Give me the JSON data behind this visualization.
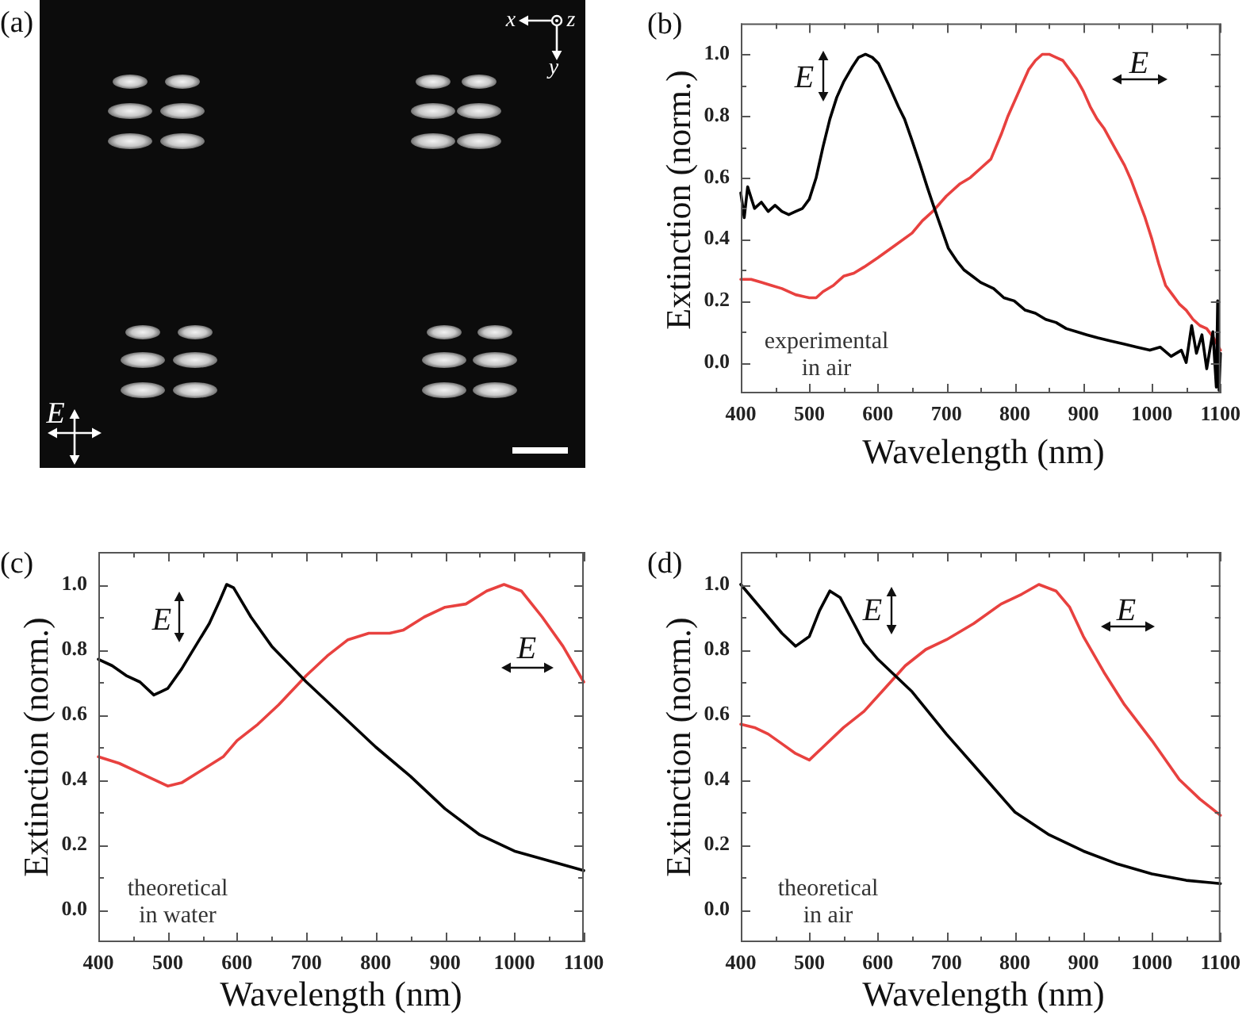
{
  "chart_data": [
    {
      "type": "other",
      "title": "(a)",
      "annotations": [
        "x",
        "z",
        "y",
        "E"
      ]
    },
    {
      "type": "line",
      "title": "(b)",
      "xlabel": "Wavelength (nm)",
      "ylabel": "Extinction (norm.)",
      "xlim": [
        400,
        1100
      ],
      "ylim": [
        -0.1,
        1.1
      ],
      "xticks": [
        400,
        {
          "value": 450,
          "label": null
        },
        500,
        {
          "value": 550,
          "label": null
        },
        600,
        {
          "value": 650,
          "label": null
        },
        700,
        {
          "value": 750,
          "label": null
        },
        800,
        {
          "value": 850,
          "label": null
        },
        900,
        {
          "value": 950,
          "label": null
        },
        1000,
        {
          "value": 1050,
          "label": null
        },
        1100
      ],
      "yticks": [
        {
          "value": 0,
          "label": "0.0"
        },
        {
          "value": 0.1,
          "label": null
        },
        0.2,
        {
          "value": 0.3,
          "label": null
        },
        0.4,
        {
          "value": 0.5,
          "label": null
        },
        0.6,
        {
          "value": 0.7,
          "label": null
        },
        0.8,
        {
          "value": 0.9,
          "label": null
        },
        {
          "value": 1,
          "label": "1.0"
        }
      ],
      "series": [
        {
          "color": "#000000",
          "x": [
            400,
            405,
            410,
            420,
            430,
            440,
            450,
            460,
            470,
            480,
            490,
            500,
            510,
            520,
            530,
            540,
            550,
            563,
            572,
            582,
            592,
            601,
            616,
            630,
            639,
            650,
            662,
            672,
            681,
            692,
            703,
            715,
            726,
            738,
            750,
            769,
            784,
            799,
            815,
            830,
            845,
            860,
            875,
            890,
            905,
            921,
            940,
            959,
            978,
            997,
            1012,
            1028,
            1043,
            1050,
            1058,
            1065,
            1073,
            1080,
            1089,
            1094,
            1096,
            1098,
            1100
          ],
          "values": [
            0.55,
            0.47,
            0.57,
            0.5,
            0.52,
            0.49,
            0.51,
            0.49,
            0.48,
            0.49,
            0.5,
            0.53,
            0.6,
            0.7,
            0.79,
            0.86,
            0.91,
            0.96,
            0.99,
            1.0,
            0.99,
            0.97,
            0.9,
            0.83,
            0.79,
            0.72,
            0.64,
            0.57,
            0.51,
            0.44,
            0.37,
            0.33,
            0.3,
            0.28,
            0.26,
            0.24,
            0.21,
            0.2,
            0.17,
            0.16,
            0.14,
            0.13,
            0.11,
            0.1,
            0.09,
            0.08,
            0.07,
            0.06,
            0.05,
            0.04,
            0.05,
            0.02,
            0.04,
            0.0,
            0.12,
            0.03,
            0.09,
            -0.02,
            0.1,
            -0.08,
            0.2,
            -0.09,
            0.03
          ]
        },
        {
          "color": "#e8413f",
          "x": [
            400,
            415,
            430,
            445,
            460,
            480,
            500,
            510,
            520,
            535,
            550,
            565,
            580,
            600,
            625,
            650,
            665,
            680,
            700,
            720,
            735,
            750,
            765,
            780,
            790,
            800,
            810,
            820,
            830,
            840,
            850,
            860,
            870,
            880,
            890,
            900,
            910,
            920,
            930,
            940,
            950,
            960,
            970,
            980,
            990,
            1000,
            1010,
            1020,
            1030,
            1040,
            1050,
            1060,
            1070,
            1080,
            1090,
            1100
          ],
          "values": [
            0.27,
            0.27,
            0.26,
            0.25,
            0.24,
            0.22,
            0.21,
            0.21,
            0.23,
            0.25,
            0.28,
            0.29,
            0.31,
            0.34,
            0.38,
            0.42,
            0.46,
            0.49,
            0.54,
            0.58,
            0.6,
            0.63,
            0.66,
            0.74,
            0.8,
            0.85,
            0.9,
            0.95,
            0.98,
            1.0,
            1.0,
            0.99,
            0.98,
            0.95,
            0.92,
            0.88,
            0.83,
            0.79,
            0.76,
            0.72,
            0.68,
            0.64,
            0.59,
            0.53,
            0.47,
            0.4,
            0.32,
            0.25,
            0.22,
            0.19,
            0.17,
            0.14,
            0.12,
            0.11,
            0.08,
            0.04
          ]
        }
      ],
      "annotations": [
        "E",
        "E",
        "experimental\nin air"
      ]
    },
    {
      "type": "line",
      "title": "(c)",
      "xlabel": "Wavelength (nm)",
      "ylabel": "Extinction (norm.)",
      "xlim": [
        400,
        1100
      ],
      "ylim": [
        -0.1,
        1.1
      ],
      "xticks": [
        400,
        {
          "value": 450,
          "label": null
        },
        500,
        {
          "value": 550,
          "label": null
        },
        600,
        {
          "value": 650,
          "label": null
        },
        700,
        {
          "value": 750,
          "label": null
        },
        800,
        {
          "value": 850,
          "label": null
        },
        900,
        {
          "value": 950,
          "label": null
        },
        1000,
        {
          "value": 1050,
          "label": null
        },
        1100
      ],
      "yticks": [
        {
          "value": 0,
          "label": "0.0"
        },
        {
          "value": 0.1,
          "label": null
        },
        0.2,
        {
          "value": 0.3,
          "label": null
        },
        0.4,
        {
          "value": 0.5,
          "label": null
        },
        0.6,
        {
          "value": 0.7,
          "label": null
        },
        0.8,
        {
          "value": 0.9,
          "label": null
        },
        {
          "value": 1,
          "label": "1.0"
        }
      ],
      "series": [
        {
          "color": "#000000",
          "x": [
            400,
            420,
            440,
            460,
            480,
            490,
            500,
            520,
            540,
            560,
            575,
            585,
            595,
            620,
            650,
            700,
            750,
            800,
            850,
            900,
            950,
            1000,
            1050,
            1100
          ],
          "values": [
            0.77,
            0.75,
            0.72,
            0.7,
            0.66,
            0.67,
            0.68,
            0.74,
            0.81,
            0.88,
            0.95,
            1.0,
            0.99,
            0.9,
            0.81,
            0.7,
            0.6,
            0.5,
            0.41,
            0.31,
            0.23,
            0.18,
            0.15,
            0.12
          ]
        },
        {
          "color": "#e8413f",
          "x": [
            400,
            430,
            450,
            470,
            500,
            520,
            550,
            580,
            600,
            630,
            660,
            700,
            730,
            760,
            790,
            820,
            840,
            870,
            900,
            930,
            960,
            985,
            1010,
            1040,
            1070,
            1100
          ],
          "values": [
            0.47,
            0.45,
            0.43,
            0.41,
            0.38,
            0.39,
            0.43,
            0.47,
            0.52,
            0.57,
            0.63,
            0.72,
            0.78,
            0.83,
            0.85,
            0.85,
            0.86,
            0.9,
            0.93,
            0.94,
            0.98,
            1.0,
            0.98,
            0.9,
            0.81,
            0.7
          ]
        }
      ],
      "annotations": [
        "E",
        "E",
        "theoretical\nin water"
      ]
    },
    {
      "type": "line",
      "title": "(d)",
      "xlabel": "Wavelength (nm)",
      "ylabel": "Extinction (norm.)",
      "xlim": [
        400,
        1100
      ],
      "ylim": [
        -0.1,
        1.1
      ],
      "xticks": [
        400,
        {
          "value": 450,
          "label": null
        },
        500,
        {
          "value": 550,
          "label": null
        },
        600,
        {
          "value": 650,
          "label": null
        },
        700,
        {
          "value": 750,
          "label": null
        },
        800,
        {
          "value": 850,
          "label": null
        },
        900,
        {
          "value": 950,
          "label": null
        },
        1000,
        {
          "value": 1050,
          "label": null
        },
        1100
      ],
      "yticks": [
        {
          "value": 0,
          "label": "0.0"
        },
        {
          "value": 0.1,
          "label": null
        },
        0.2,
        {
          "value": 0.3,
          "label": null
        },
        0.4,
        {
          "value": 0.5,
          "label": null
        },
        0.6,
        {
          "value": 0.7,
          "label": null
        },
        0.8,
        {
          "value": 0.9,
          "label": null
        },
        {
          "value": 1,
          "label": "1.0"
        }
      ],
      "series": [
        {
          "color": "#000000",
          "x": [
            400,
            420,
            440,
            460,
            480,
            500,
            515,
            530,
            545,
            560,
            580,
            600,
            650,
            700,
            750,
            800,
            850,
            900,
            950,
            1000,
            1050,
            1100
          ],
          "values": [
            1.0,
            0.95,
            0.9,
            0.85,
            0.81,
            0.84,
            0.92,
            0.98,
            0.96,
            0.9,
            0.82,
            0.77,
            0.67,
            0.54,
            0.42,
            0.3,
            0.23,
            0.18,
            0.14,
            0.11,
            0.09,
            0.08
          ]
        },
        {
          "color": "#e8413f",
          "x": [
            400,
            420,
            440,
            460,
            480,
            500,
            520,
            550,
            580,
            610,
            640,
            670,
            700,
            740,
            780,
            810,
            835,
            860,
            880,
            900,
            930,
            960,
            1000,
            1040,
            1070,
            1100
          ],
          "values": [
            0.57,
            0.56,
            0.54,
            0.51,
            0.48,
            0.46,
            0.5,
            0.56,
            0.61,
            0.68,
            0.75,
            0.8,
            0.83,
            0.88,
            0.94,
            0.97,
            1.0,
            0.98,
            0.93,
            0.84,
            0.73,
            0.63,
            0.52,
            0.4,
            0.34,
            0.29
          ]
        }
      ],
      "annotations": [
        "E",
        "E",
        "theoretical\nin air"
      ]
    }
  ]
}
